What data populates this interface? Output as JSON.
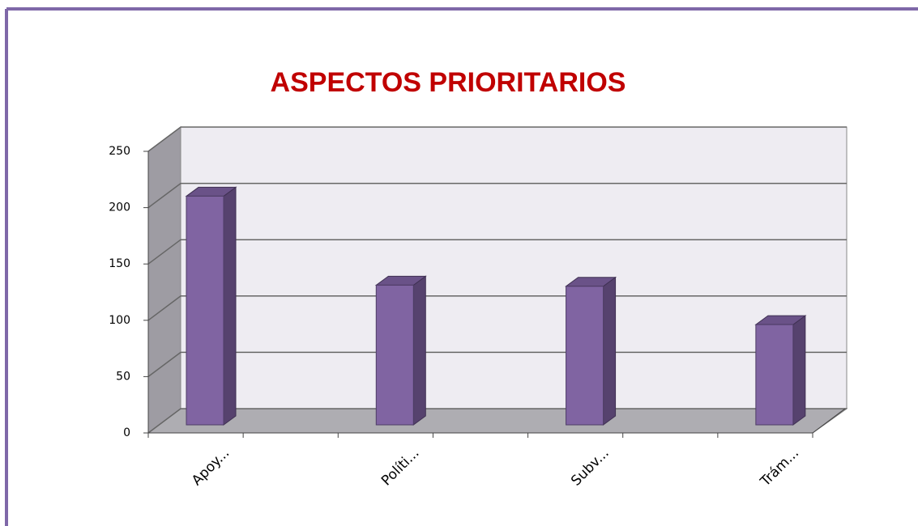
{
  "chart_data": {
    "type": "bar3d",
    "title": "ASPECTOS PRIORITARIOS",
    "categories": [
      "Apoy...",
      "Políti...",
      "Subv...",
      "Trám..."
    ],
    "values": [
      203,
      124,
      123,
      89
    ],
    "color": "#8064a2",
    "ylim": [
      0,
      250
    ],
    "yticks": [
      0,
      50,
      100,
      150,
      200,
      250
    ],
    "grid": true
  }
}
